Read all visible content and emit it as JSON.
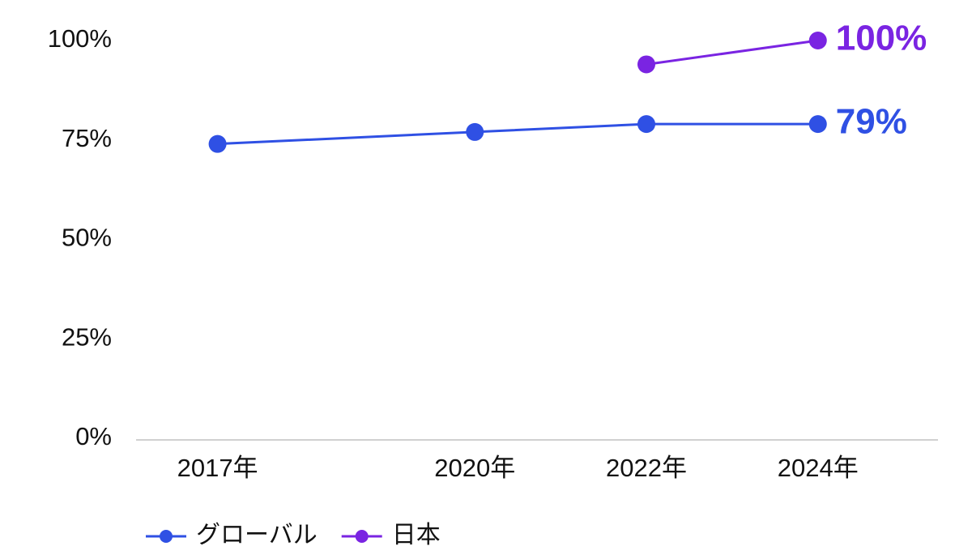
{
  "chart_data": {
    "type": "line",
    "x": [
      2017,
      2020,
      2022,
      2024
    ],
    "xlim": [
      2016.05,
      2025.4
    ],
    "xticks": [
      {
        "value": 2017,
        "label": "2017年"
      },
      {
        "value": 2020,
        "label": "2020年"
      },
      {
        "value": 2022,
        "label": "2022年"
      },
      {
        "value": 2024,
        "label": "2024年"
      }
    ],
    "ylim": [
      0,
      100
    ],
    "yticks": [
      {
        "value": 0,
        "label": "0%"
      },
      {
        "value": 25,
        "label": "25%"
      },
      {
        "value": 50,
        "label": "50%"
      },
      {
        "value": 75,
        "label": "75%"
      },
      {
        "value": 100,
        "label": "100%"
      }
    ],
    "grid": false,
    "legend": "bottom-left",
    "series": [
      {
        "name": "グローバル",
        "color": "#2f50e4",
        "values": [
          74,
          77,
          79,
          79
        ],
        "value_labels": [
          null,
          null,
          null,
          "79%"
        ]
      },
      {
        "name": "日本",
        "color": "#7a24e2",
        "values": [
          null,
          null,
          94,
          100
        ],
        "value_labels": [
          null,
          null,
          null,
          "100%"
        ]
      }
    ]
  }
}
